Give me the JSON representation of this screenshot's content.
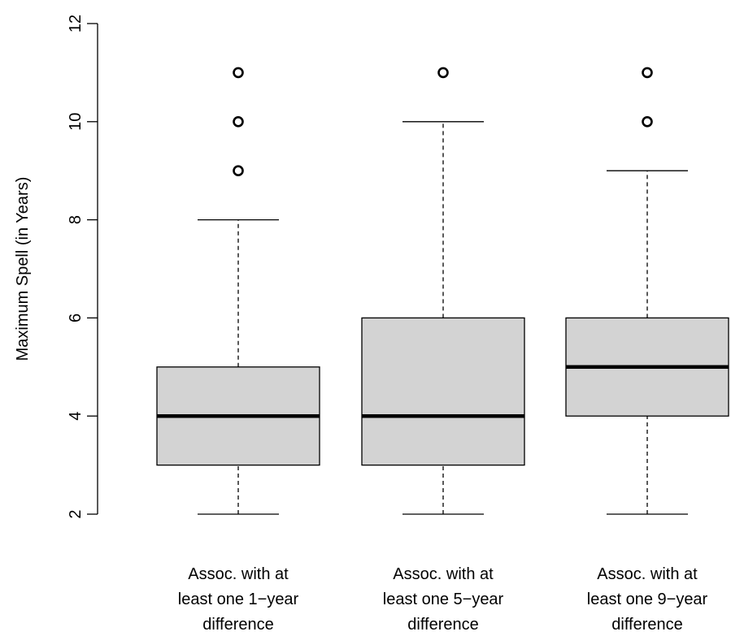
{
  "chart_data": {
    "type": "boxplot",
    "title": "",
    "xlabel": "",
    "ylabel": "Maximum Spell (in Years)",
    "ylim": [
      2,
      12
    ],
    "yticks": [
      2,
      4,
      6,
      8,
      10,
      12
    ],
    "grid": false,
    "box_color": "#d3d3d3",
    "categories": [
      [
        "Assoc. with at",
        "least one 1−year",
        "difference"
      ],
      [
        "Assoc. with at",
        "least one 5−year",
        "difference"
      ],
      [
        "Assoc. with at",
        "least one 9−year",
        "difference"
      ]
    ],
    "boxes": [
      {
        "whisker_low": 2,
        "q1": 3,
        "median": 4,
        "q3": 5,
        "whisker_high": 8,
        "outliers": [
          9,
          10,
          11
        ]
      },
      {
        "whisker_low": 2,
        "q1": 3,
        "median": 4,
        "q3": 6,
        "whisker_high": 10,
        "outliers": [
          11
        ]
      },
      {
        "whisker_low": 2,
        "q1": 4,
        "median": 5,
        "q3": 6,
        "whisker_high": 9,
        "outliers": [
          10,
          11
        ]
      }
    ]
  }
}
